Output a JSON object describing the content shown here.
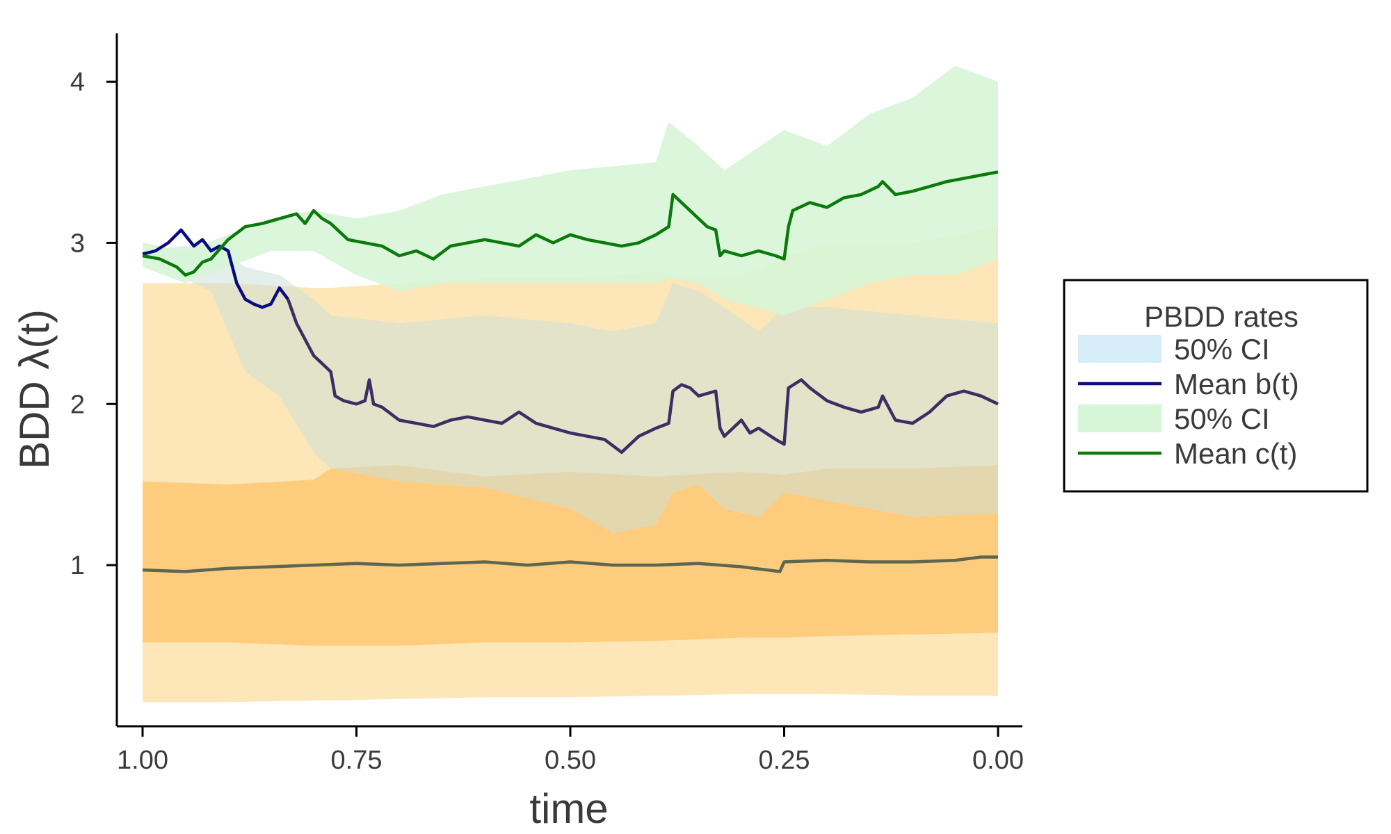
{
  "chart_data": {
    "type": "line",
    "xlabel": "time",
    "ylabel": "BDD λ(t)",
    "x_reversed": true,
    "xlim": [
      1.0,
      0.0
    ],
    "ylim": [
      0.0,
      4.3
    ],
    "x_ticks": [
      1.0,
      0.75,
      0.5,
      0.25,
      0.0
    ],
    "x_tick_labels": [
      "1.00",
      "0.75",
      "0.50",
      "0.25",
      "0.00"
    ],
    "y_ticks": [
      1,
      2,
      3,
      4
    ],
    "y_tick_labels": [
      "1",
      "2",
      "3",
      "4"
    ],
    "grid": false,
    "legend": {
      "title": "PBDD rates",
      "placement": "right",
      "entries": [
        {
          "kind": "band",
          "label": "50% CI",
          "color": "#d6ecf7"
        },
        {
          "kind": "line",
          "label": "Mean b(t)",
          "color": "#0b0b80"
        },
        {
          "kind": "band",
          "label": "50% CI",
          "color": "#d7f5d7"
        },
        {
          "kind": "line",
          "label": "Mean c(t)",
          "color": "#0a7a0a"
        }
      ]
    },
    "bands": [
      {
        "name": "speciation-outer",
        "color": "#fcd27e",
        "opacity": 0.55,
        "x": [
          1.0,
          0.9,
          0.8,
          0.78,
          0.7,
          0.6,
          0.5,
          0.4,
          0.38,
          0.3,
          0.25,
          0.2,
          0.1,
          0.0
        ],
        "upper": [
          2.75,
          2.75,
          2.72,
          2.72,
          2.75,
          2.78,
          2.78,
          2.82,
          2.8,
          2.8,
          2.9,
          3.0,
          3.0,
          3.1
        ],
        "lower": [
          0.15,
          0.15,
          0.16,
          0.16,
          0.17,
          0.18,
          0.18,
          0.19,
          0.19,
          0.2,
          0.2,
          0.2,
          0.19,
          0.19
        ]
      },
      {
        "name": "speciation-inner",
        "color": "#fcc46a",
        "opacity": 0.75,
        "x": [
          1.0,
          0.9,
          0.8,
          0.78,
          0.7,
          0.6,
          0.5,
          0.4,
          0.3,
          0.25,
          0.2,
          0.1,
          0.0
        ],
        "upper": [
          1.52,
          1.5,
          1.53,
          1.6,
          1.62,
          1.55,
          1.58,
          1.55,
          1.58,
          1.56,
          1.6,
          1.6,
          1.62
        ],
        "lower": [
          0.52,
          0.52,
          0.5,
          0.5,
          0.5,
          0.52,
          0.52,
          0.53,
          0.55,
          0.55,
          0.56,
          0.57,
          0.58
        ]
      },
      {
        "name": "b-ci",
        "color": "#cde0d9",
        "opacity": 0.55,
        "x": [
          1.0,
          0.92,
          0.88,
          0.84,
          0.8,
          0.78,
          0.7,
          0.6,
          0.5,
          0.45,
          0.4,
          0.38,
          0.35,
          0.32,
          0.28,
          0.25,
          0.2,
          0.1,
          0.0
        ],
        "upper": [
          2.95,
          3.0,
          2.85,
          2.8,
          2.65,
          2.55,
          2.5,
          2.55,
          2.5,
          2.45,
          2.5,
          2.75,
          2.7,
          2.6,
          2.45,
          2.6,
          2.6,
          2.55,
          2.5
        ],
        "lower": [
          2.9,
          2.7,
          2.2,
          2.05,
          1.7,
          1.6,
          1.52,
          1.48,
          1.35,
          1.2,
          1.25,
          1.45,
          1.5,
          1.35,
          1.3,
          1.45,
          1.4,
          1.3,
          1.32
        ]
      },
      {
        "name": "c-ci",
        "color": "#d7f5d7",
        "opacity": 0.9,
        "x": [
          1.0,
          0.95,
          0.9,
          0.85,
          0.8,
          0.75,
          0.7,
          0.65,
          0.6,
          0.5,
          0.4,
          0.385,
          0.35,
          0.32,
          0.25,
          0.2,
          0.15,
          0.1,
          0.05,
          0.0
        ],
        "upper": [
          3.0,
          2.95,
          3.05,
          3.15,
          3.2,
          3.15,
          3.2,
          3.3,
          3.35,
          3.45,
          3.5,
          3.75,
          3.6,
          3.45,
          3.7,
          3.6,
          3.8,
          3.9,
          4.1,
          4.0
        ],
        "lower": [
          2.85,
          2.75,
          2.85,
          2.95,
          2.95,
          2.8,
          2.7,
          2.75,
          2.75,
          2.75,
          2.75,
          2.78,
          2.75,
          2.65,
          2.55,
          2.65,
          2.75,
          2.8,
          2.8,
          2.9
        ]
      }
    ],
    "series": [
      {
        "name": "Mean b(t)",
        "color": "#0b0b80",
        "x": [
          1.0,
          0.985,
          0.97,
          0.955,
          0.94,
          0.93,
          0.92,
          0.91,
          0.9,
          0.89,
          0.88,
          0.87,
          0.86,
          0.85,
          0.84,
          0.83
        ],
        "values": [
          2.93,
          2.95,
          3.0,
          3.08,
          2.98,
          3.02,
          2.95,
          2.98,
          2.95,
          2.75,
          2.65,
          2.62,
          2.6,
          2.62,
          2.72,
          2.65
        ]
      },
      {
        "name": "b-mean-overlap",
        "color": "#3d2d62",
        "x": [
          0.83,
          0.82,
          0.81,
          0.8,
          0.79,
          0.78,
          0.775,
          0.765,
          0.75,
          0.74,
          0.735,
          0.73,
          0.72,
          0.7,
          0.68,
          0.66,
          0.64,
          0.62,
          0.6,
          0.58,
          0.56,
          0.54,
          0.52,
          0.5,
          0.48,
          0.46,
          0.44,
          0.42,
          0.4,
          0.385,
          0.38,
          0.37,
          0.36,
          0.35,
          0.33,
          0.325,
          0.32,
          0.3,
          0.29,
          0.28,
          0.26,
          0.25,
          0.245,
          0.23,
          0.22,
          0.2,
          0.18,
          0.16,
          0.14,
          0.135,
          0.12,
          0.1,
          0.08,
          0.06,
          0.04,
          0.02,
          0.0
        ],
        "values": [
          2.65,
          2.5,
          2.4,
          2.3,
          2.25,
          2.2,
          2.05,
          2.02,
          2.0,
          2.02,
          2.15,
          2.0,
          1.98,
          1.9,
          1.88,
          1.86,
          1.9,
          1.92,
          1.9,
          1.88,
          1.95,
          1.88,
          1.85,
          1.82,
          1.8,
          1.78,
          1.7,
          1.8,
          1.85,
          1.88,
          2.08,
          2.12,
          2.1,
          2.05,
          2.08,
          1.85,
          1.8,
          1.9,
          1.82,
          1.85,
          1.78,
          1.75,
          2.1,
          2.15,
          2.1,
          2.02,
          1.98,
          1.95,
          1.98,
          2.05,
          1.9,
          1.88,
          1.95,
          2.05,
          2.08,
          2.05,
          2.0
        ]
      },
      {
        "name": "Mean c(t)",
        "color": "#0a7a0a",
        "x": [
          1.0,
          0.98,
          0.96,
          0.95,
          0.94,
          0.93,
          0.92,
          0.9,
          0.88,
          0.86,
          0.84,
          0.82,
          0.81,
          0.8,
          0.79,
          0.78,
          0.76,
          0.74,
          0.72,
          0.7,
          0.68,
          0.66,
          0.64,
          0.62,
          0.6,
          0.58,
          0.56,
          0.54,
          0.52,
          0.5,
          0.48,
          0.46,
          0.44,
          0.42,
          0.4,
          0.385,
          0.38,
          0.37,
          0.36,
          0.35,
          0.34,
          0.33,
          0.325,
          0.32,
          0.3,
          0.28,
          0.26,
          0.25,
          0.245,
          0.24,
          0.22,
          0.2,
          0.18,
          0.16,
          0.14,
          0.135,
          0.12,
          0.1,
          0.08,
          0.06,
          0.04,
          0.02,
          0.0
        ],
        "values": [
          2.92,
          2.9,
          2.85,
          2.8,
          2.82,
          2.88,
          2.9,
          3.02,
          3.1,
          3.12,
          3.15,
          3.18,
          3.12,
          3.2,
          3.15,
          3.12,
          3.02,
          3.0,
          2.98,
          2.92,
          2.95,
          2.9,
          2.98,
          3.0,
          3.02,
          3.0,
          2.98,
          3.05,
          3.0,
          3.05,
          3.02,
          3.0,
          2.98,
          3.0,
          3.05,
          3.1,
          3.3,
          3.25,
          3.2,
          3.15,
          3.1,
          3.08,
          2.92,
          2.95,
          2.92,
          2.95,
          2.92,
          2.9,
          3.1,
          3.2,
          3.25,
          3.22,
          3.28,
          3.3,
          3.35,
          3.38,
          3.3,
          3.32,
          3.35,
          3.38,
          3.4,
          3.42,
          3.44
        ]
      },
      {
        "name": "mu-mean",
        "color": "#5e6650",
        "x": [
          1.0,
          0.95,
          0.9,
          0.85,
          0.8,
          0.75,
          0.7,
          0.65,
          0.6,
          0.55,
          0.5,
          0.45,
          0.4,
          0.35,
          0.3,
          0.255,
          0.25,
          0.2,
          0.15,
          0.1,
          0.05,
          0.02,
          0.0
        ],
        "values": [
          0.97,
          0.96,
          0.98,
          0.99,
          1.0,
          1.01,
          1.0,
          1.01,
          1.02,
          1.0,
          1.02,
          1.0,
          1.0,
          1.01,
          0.99,
          0.96,
          1.02,
          1.03,
          1.02,
          1.02,
          1.03,
          1.05,
          1.05
        ]
      }
    ]
  }
}
